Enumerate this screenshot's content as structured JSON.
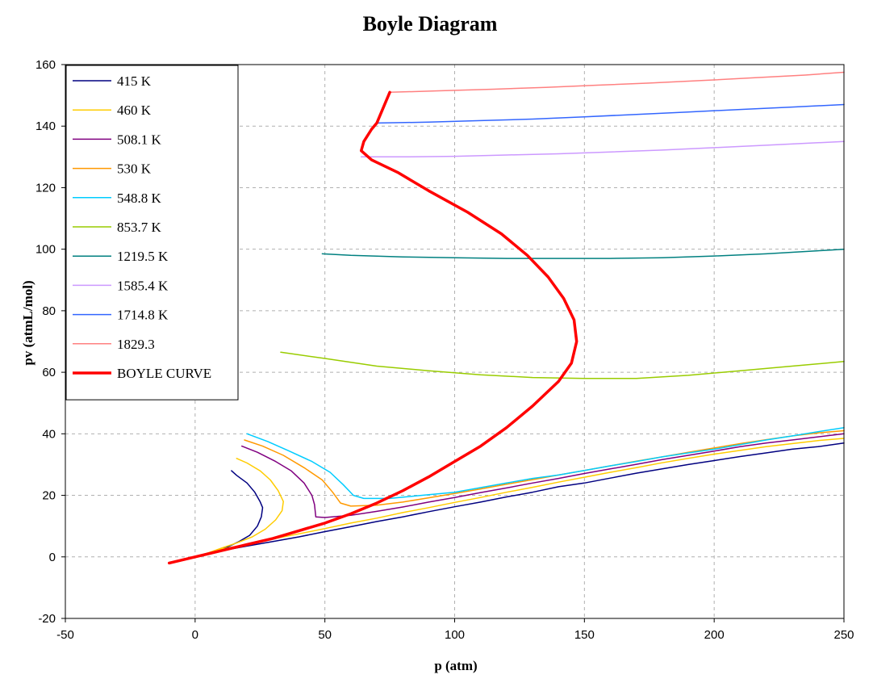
{
  "chart_data": {
    "type": "line",
    "title": "Boyle Diagram",
    "xlabel": "p (atm)",
    "ylabel": "pv (atmL/mol)",
    "xlim": [
      -50,
      250
    ],
    "ylim": [
      -20,
      160
    ],
    "x_ticks": [
      -50,
      0,
      50,
      100,
      150,
      200,
      250
    ],
    "y_ticks": [
      -20,
      0,
      20,
      40,
      60,
      80,
      100,
      120,
      140,
      160
    ],
    "grid": true,
    "legend_position": "top-left",
    "series": [
      {
        "name": "415 K",
        "color": "#000080",
        "width": 1.5,
        "points": [
          [
            14,
            28
          ],
          [
            16,
            26.5
          ],
          [
            20,
            24
          ],
          [
            23,
            21
          ],
          [
            25,
            18
          ],
          [
            26,
            16
          ],
          [
            25.5,
            13
          ],
          [
            24,
            10
          ],
          [
            21,
            7
          ],
          [
            17,
            5
          ],
          [
            12,
            3
          ],
          [
            8,
            2
          ],
          [
            4,
            1
          ],
          [
            0,
            0
          ],
          [
            10,
            2
          ],
          [
            20,
            3.5
          ],
          [
            30,
            5
          ],
          [
            40,
            6.5
          ],
          [
            50,
            8.2
          ],
          [
            60,
            9.8
          ],
          [
            70,
            11.5
          ],
          [
            80,
            13
          ],
          [
            90,
            14.7
          ],
          [
            100,
            16.3
          ],
          [
            110,
            17.8
          ],
          [
            120,
            19.5
          ],
          [
            130,
            21
          ],
          [
            140,
            22.8
          ],
          [
            150,
            24
          ],
          [
            160,
            25.6
          ],
          [
            170,
            27.2
          ],
          [
            180,
            28.6
          ],
          [
            190,
            30
          ],
          [
            200,
            31.3
          ],
          [
            210,
            32.6
          ],
          [
            220,
            33.8
          ],
          [
            230,
            35
          ],
          [
            240,
            35.8
          ],
          [
            250,
            37
          ]
        ]
      },
      {
        "name": "460 K",
        "color": "#ffcc00",
        "width": 1.5,
        "points": [
          [
            16,
            32
          ],
          [
            20,
            30.5
          ],
          [
            25,
            28
          ],
          [
            29,
            25
          ],
          [
            32,
            21.5
          ],
          [
            34,
            18
          ],
          [
            33.5,
            15
          ],
          [
            31,
            12
          ],
          [
            27,
            9
          ],
          [
            22,
            6.5
          ],
          [
            16,
            4.5
          ],
          [
            10,
            2.8
          ],
          [
            5,
            1.3
          ],
          [
            0,
            0
          ],
          [
            10,
            2.5
          ],
          [
            20,
            4
          ],
          [
            30,
            5.8
          ],
          [
            40,
            7.5
          ],
          [
            50,
            9.2
          ],
          [
            60,
            11
          ],
          [
            70,
            12.6
          ],
          [
            80,
            14.4
          ],
          [
            90,
            16
          ],
          [
            100,
            17.7
          ],
          [
            110,
            19.3
          ],
          [
            120,
            21
          ],
          [
            130,
            22.6
          ],
          [
            140,
            24.3
          ],
          [
            150,
            25.9
          ],
          [
            160,
            27.5
          ],
          [
            170,
            29
          ],
          [
            180,
            30.6
          ],
          [
            190,
            32
          ],
          [
            200,
            33.4
          ],
          [
            210,
            34.6
          ],
          [
            220,
            35.8
          ],
          [
            230,
            36.8
          ],
          [
            240,
            37.8
          ],
          [
            250,
            38.5
          ]
        ]
      },
      {
        "name": "508.1 K",
        "color": "#800080",
        "width": 1.5,
        "points": [
          [
            18,
            36
          ],
          [
            24,
            34
          ],
          [
            31,
            31
          ],
          [
            37,
            28
          ],
          [
            42,
            24
          ],
          [
            45,
            20
          ],
          [
            46,
            17
          ],
          [
            46.5,
            13
          ],
          [
            50,
            12.8
          ],
          [
            60,
            13.5
          ],
          [
            70,
            14.8
          ],
          [
            80,
            16.2
          ],
          [
            90,
            17.8
          ],
          [
            100,
            19.3
          ],
          [
            110,
            20.9
          ],
          [
            120,
            22.4
          ],
          [
            130,
            24
          ],
          [
            140,
            25.5
          ],
          [
            150,
            27.1
          ],
          [
            160,
            28.6
          ],
          [
            170,
            30.1
          ],
          [
            180,
            31.6
          ],
          [
            190,
            33
          ],
          [
            200,
            34.4
          ],
          [
            210,
            35.8
          ],
          [
            220,
            37
          ],
          [
            230,
            38
          ],
          [
            240,
            39
          ],
          [
            250,
            40
          ]
        ]
      },
      {
        "name": "530 K",
        "color": "#ff9900",
        "width": 1.5,
        "points": [
          [
            19,
            38
          ],
          [
            26,
            36
          ],
          [
            34,
            33
          ],
          [
            42,
            29
          ],
          [
            49,
            25
          ],
          [
            53,
            21
          ],
          [
            56,
            17.5
          ],
          [
            60,
            16.5
          ],
          [
            70,
            16.8
          ],
          [
            80,
            17.8
          ],
          [
            90,
            19.2
          ],
          [
            100,
            20.6
          ],
          [
            110,
            22.1
          ],
          [
            120,
            23.6
          ],
          [
            130,
            25.1
          ],
          [
            140,
            26.6
          ],
          [
            150,
            28.1
          ],
          [
            160,
            29.6
          ],
          [
            170,
            31.1
          ],
          [
            180,
            32.5
          ],
          [
            190,
            34
          ],
          [
            200,
            35.4
          ],
          [
            210,
            36.8
          ],
          [
            220,
            38.1
          ],
          [
            230,
            39.3
          ],
          [
            240,
            40.3
          ],
          [
            250,
            41
          ]
        ]
      },
      {
        "name": "548.8 K",
        "color": "#00ccff",
        "width": 1.5,
        "points": [
          [
            20,
            40
          ],
          [
            28,
            37.5
          ],
          [
            36,
            34.5
          ],
          [
            45,
            31
          ],
          [
            52,
            27.5
          ],
          [
            57,
            23.5
          ],
          [
            61,
            20
          ],
          [
            65,
            19
          ],
          [
            75,
            19
          ],
          [
            85,
            19.8
          ],
          [
            100,
            21
          ],
          [
            110,
            22.5
          ],
          [
            120,
            24
          ],
          [
            130,
            25.5
          ],
          [
            140,
            26.6
          ],
          [
            150,
            28.1
          ],
          [
            160,
            29.6
          ],
          [
            170,
            31
          ],
          [
            180,
            32.5
          ],
          [
            190,
            33.8
          ],
          [
            200,
            35
          ],
          [
            210,
            36.5
          ],
          [
            220,
            38
          ],
          [
            230,
            39.3
          ],
          [
            240,
            40.7
          ],
          [
            250,
            42
          ]
        ]
      },
      {
        "name": "853.7 K",
        "color": "#99cc00",
        "width": 1.5,
        "points": [
          [
            33,
            66.5
          ],
          [
            50,
            64.5
          ],
          [
            70,
            62
          ],
          [
            90,
            60.5
          ],
          [
            110,
            59.2
          ],
          [
            130,
            58.3
          ],
          [
            150,
            58
          ],
          [
            170,
            58
          ],
          [
            190,
            59
          ],
          [
            210,
            60.5
          ],
          [
            230,
            62
          ],
          [
            250,
            63.5
          ]
        ]
      },
      {
        "name": "1219.5 K",
        "color": "#008080",
        "width": 1.5,
        "points": [
          [
            49,
            98.5
          ],
          [
            60,
            98
          ],
          [
            80,
            97.5
          ],
          [
            100,
            97.2
          ],
          [
            120,
            97
          ],
          [
            140,
            97
          ],
          [
            160,
            97
          ],
          [
            180,
            97.2
          ],
          [
            200,
            97.8
          ],
          [
            220,
            98.5
          ],
          [
            240,
            99.5
          ],
          [
            250,
            100
          ]
        ]
      },
      {
        "name": "1585.4 K",
        "color": "#cc99ff",
        "width": 1.5,
        "points": [
          [
            64,
            130
          ],
          [
            80,
            130
          ],
          [
            100,
            130.2
          ],
          [
            120,
            130.6
          ],
          [
            140,
            131
          ],
          [
            160,
            131.6
          ],
          [
            180,
            132.2
          ],
          [
            200,
            133
          ],
          [
            220,
            133.8
          ],
          [
            240,
            134.6
          ],
          [
            250,
            135
          ]
        ]
      },
      {
        "name": "1714.8 K",
        "color": "#3366ff",
        "width": 1.5,
        "points": [
          [
            70,
            141
          ],
          [
            90,
            141.3
          ],
          [
            110,
            141.8
          ],
          [
            130,
            142.3
          ],
          [
            150,
            143
          ],
          [
            170,
            143.8
          ],
          [
            190,
            144.6
          ],
          [
            210,
            145.4
          ],
          [
            230,
            146.2
          ],
          [
            250,
            147
          ]
        ]
      },
      {
        "name": "1829.3",
        "color": "#ff8080",
        "width": 1.5,
        "points": [
          [
            75,
            151
          ],
          [
            95,
            151.5
          ],
          [
            115,
            152
          ],
          [
            135,
            152.6
          ],
          [
            155,
            153.3
          ],
          [
            175,
            154
          ],
          [
            195,
            154.8
          ],
          [
            215,
            155.7
          ],
          [
            235,
            156.6
          ],
          [
            250,
            157.5
          ]
        ]
      },
      {
        "name": "BOYLE CURVE",
        "color": "#ff0000",
        "width": 3.5,
        "points": [
          [
            -10,
            -2
          ],
          [
            0,
            0
          ],
          [
            10,
            2
          ],
          [
            20,
            4
          ],
          [
            30,
            6
          ],
          [
            40,
            8.5
          ],
          [
            50,
            11
          ],
          [
            60,
            14
          ],
          [
            70,
            17.5
          ],
          [
            80,
            21.5
          ],
          [
            90,
            26
          ],
          [
            100,
            31
          ],
          [
            110,
            36
          ],
          [
            120,
            42
          ],
          [
            130,
            49
          ],
          [
            140,
            57
          ],
          [
            145,
            63
          ],
          [
            147,
            70
          ],
          [
            146,
            77
          ],
          [
            142,
            84
          ],
          [
            136,
            91
          ],
          [
            128,
            98
          ],
          [
            118,
            105
          ],
          [
            105,
            112
          ],
          [
            90,
            119
          ],
          [
            78,
            125
          ],
          [
            68,
            129
          ],
          [
            64,
            132
          ],
          [
            65,
            135
          ],
          [
            68,
            139
          ],
          [
            70,
            141
          ],
          [
            75,
            151
          ]
        ]
      }
    ]
  }
}
